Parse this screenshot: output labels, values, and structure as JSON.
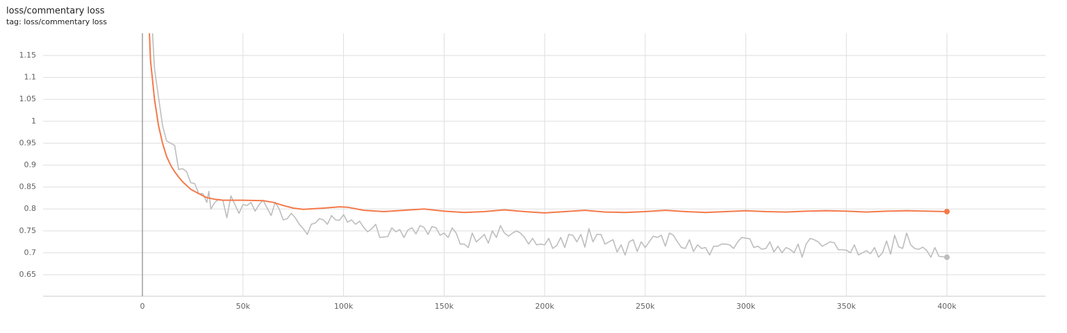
{
  "chart_data": {
    "type": "line",
    "title": "loss/commentary loss",
    "subtitle": "tag: loss/commentary loss",
    "xlim": [
      -49400,
      449000
    ],
    "ylim": [
      0.601,
      1.2006
    ],
    "xticks": [
      0,
      {
        "value": 50000,
        "label": "50k"
      },
      {
        "value": 100000,
        "label": "100k"
      },
      {
        "value": 150000,
        "label": "150k"
      },
      {
        "value": 200000,
        "label": "200k"
      },
      {
        "value": 250000,
        "label": "250k"
      },
      {
        "value": 300000,
        "label": "300k"
      },
      {
        "value": 350000,
        "label": "350k"
      },
      {
        "value": 400000,
        "label": "400k"
      }
    ],
    "yticks": [
      0.65,
      0.7,
      0.75,
      0.8,
      0.85,
      0.9,
      0.95,
      1,
      1.05,
      1.1,
      1.15
    ],
    "grid": true,
    "series": [
      {
        "color": "#bdbdbd",
        "x": [
          2000,
          6000,
          10000,
          12000,
          16000,
          18000,
          20000,
          22000,
          24000,
          26000,
          28000,
          30000,
          32000,
          33000,
          34000,
          36000,
          38000,
          40000,
          42000,
          44000,
          46000,
          48000,
          50000,
          52000,
          54000,
          56000,
          58000,
          60000,
          64000,
          66000,
          68000,
          70000,
          72000,
          74000,
          76000,
          78000,
          80000,
          82000,
          84000,
          86000,
          88000,
          90000,
          92000,
          94000,
          96000,
          98000,
          100000,
          102000,
          104000,
          106000,
          108000,
          110000,
          112000,
          114000,
          116000,
          118000,
          122000,
          124000,
          126000,
          128000,
          130000,
          132000,
          134000,
          136000,
          138000,
          140000,
          142000,
          144000,
          146000,
          148000,
          150000,
          152000,
          154000,
          156000,
          158000,
          160000,
          162000,
          164000,
          166000,
          168000,
          170000,
          172000,
          174000,
          176000,
          178000,
          180000,
          182000,
          184000,
          186000,
          188000,
          190000,
          192000,
          194000,
          196000,
          198000,
          200000,
          202000,
          204000,
          206000,
          208000,
          210000,
          212000,
          214000,
          216000,
          218000,
          220000,
          222000,
          224000,
          226000,
          228000,
          230000,
          232000,
          234000,
          236000,
          238000,
          240000,
          242000,
          244000,
          246000,
          248000,
          250000,
          252000,
          254000,
          256000,
          258000,
          260000,
          262000,
          264000,
          266000,
          268000,
          270000,
          272000,
          274000,
          276000,
          278000,
          280000,
          282000,
          284000,
          286000,
          288000,
          290000,
          292000,
          294000,
          296000,
          298000,
          302000,
          304000,
          306000,
          308000,
          310000,
          312000,
          314000,
          316000,
          318000,
          320000,
          322000,
          324000,
          326000,
          328000,
          330000,
          332000,
          334000,
          336000,
          338000,
          340000,
          342000,
          344000,
          346000,
          348000,
          350000,
          352000,
          354000,
          356000,
          358000,
          360000,
          362000,
          364000,
          366000,
          368000,
          370000,
          372000,
          374000,
          376000,
          378000,
          380000,
          382000,
          384000,
          386000,
          388000,
          390000,
          392000,
          394000,
          396000,
          400000
        ],
        "values": [
          1.45,
          1.12,
          0.99,
          0.955,
          0.945,
          0.89,
          0.892,
          0.885,
          0.86,
          0.858,
          0.835,
          0.835,
          0.815,
          0.84,
          0.8,
          0.815,
          0.822,
          0.82,
          0.78,
          0.83,
          0.81,
          0.79,
          0.81,
          0.808,
          0.815,
          0.795,
          0.81,
          0.82,
          0.785,
          0.815,
          0.8,
          0.775,
          0.778,
          0.79,
          0.78,
          0.765,
          0.755,
          0.742,
          0.765,
          0.768,
          0.778,
          0.775,
          0.765,
          0.785,
          0.775,
          0.774,
          0.787,
          0.77,
          0.775,
          0.765,
          0.772,
          0.758,
          0.748,
          0.755,
          0.765,
          0.735,
          0.737,
          0.757,
          0.748,
          0.753,
          0.735,
          0.752,
          0.757,
          0.743,
          0.762,
          0.758,
          0.742,
          0.76,
          0.757,
          0.74,
          0.745,
          0.735,
          0.757,
          0.745,
          0.72,
          0.72,
          0.712,
          0.745,
          0.725,
          0.733,
          0.742,
          0.722,
          0.75,
          0.735,
          0.762,
          0.745,
          0.738,
          0.745,
          0.75,
          0.745,
          0.735,
          0.72,
          0.733,
          0.718,
          0.72,
          0.718,
          0.733,
          0.71,
          0.717,
          0.735,
          0.712,
          0.742,
          0.74,
          0.725,
          0.742,
          0.713,
          0.755,
          0.725,
          0.742,
          0.742,
          0.72,
          0.725,
          0.73,
          0.702,
          0.718,
          0.695,
          0.725,
          0.73,
          0.703,
          0.725,
          0.712,
          0.725,
          0.738,
          0.735,
          0.74,
          0.715,
          0.745,
          0.74,
          0.725,
          0.712,
          0.71,
          0.73,
          0.703,
          0.718,
          0.71,
          0.712,
          0.695,
          0.715,
          0.715,
          0.72,
          0.72,
          0.718,
          0.71,
          0.725,
          0.735,
          0.732,
          0.712,
          0.715,
          0.708,
          0.71,
          0.725,
          0.702,
          0.715,
          0.7,
          0.712,
          0.708,
          0.7,
          0.72,
          0.69,
          0.72,
          0.733,
          0.73,
          0.725,
          0.715,
          0.72,
          0.725,
          0.723,
          0.707,
          0.707,
          0.706,
          0.7,
          0.718,
          0.695,
          0.7,
          0.705,
          0.698,
          0.712,
          0.69,
          0.7,
          0.727,
          0.697,
          0.74,
          0.714,
          0.71,
          0.745,
          0.718,
          0.71,
          0.708,
          0.713,
          0.705,
          0.69,
          0.712,
          0.692,
          0.69
        ]
      },
      {
        "color": "#f4794a",
        "x": [
          3000,
          4000,
          6000,
          8000,
          10000,
          12000,
          14000,
          16000,
          18000,
          20000,
          24000,
          28000,
          32000,
          36000,
          40000,
          50000,
          60000,
          65000,
          70000,
          75000,
          80000,
          90000,
          98000,
          102000,
          110000,
          120000,
          130000,
          140000,
          150000,
          160000,
          170000,
          180000,
          190000,
          200000,
          210000,
          220000,
          230000,
          240000,
          250000,
          260000,
          270000,
          280000,
          290000,
          300000,
          310000,
          320000,
          330000,
          340000,
          350000,
          360000,
          370000,
          380000,
          390000,
          400000
        ],
        "values": [
          1.26,
          1.14,
          1.05,
          0.99,
          0.95,
          0.92,
          0.9,
          0.885,
          0.873,
          0.862,
          0.845,
          0.835,
          0.826,
          0.822,
          0.82,
          0.82,
          0.819,
          0.815,
          0.808,
          0.802,
          0.799,
          0.802,
          0.805,
          0.804,
          0.797,
          0.794,
          0.797,
          0.8,
          0.795,
          0.792,
          0.794,
          0.798,
          0.794,
          0.791,
          0.794,
          0.797,
          0.793,
          0.792,
          0.794,
          0.797,
          0.794,
          0.792,
          0.794,
          0.796,
          0.794,
          0.793,
          0.795,
          0.796,
          0.795,
          0.793,
          0.795,
          0.796,
          0.795,
          0.794
        ]
      }
    ]
  }
}
